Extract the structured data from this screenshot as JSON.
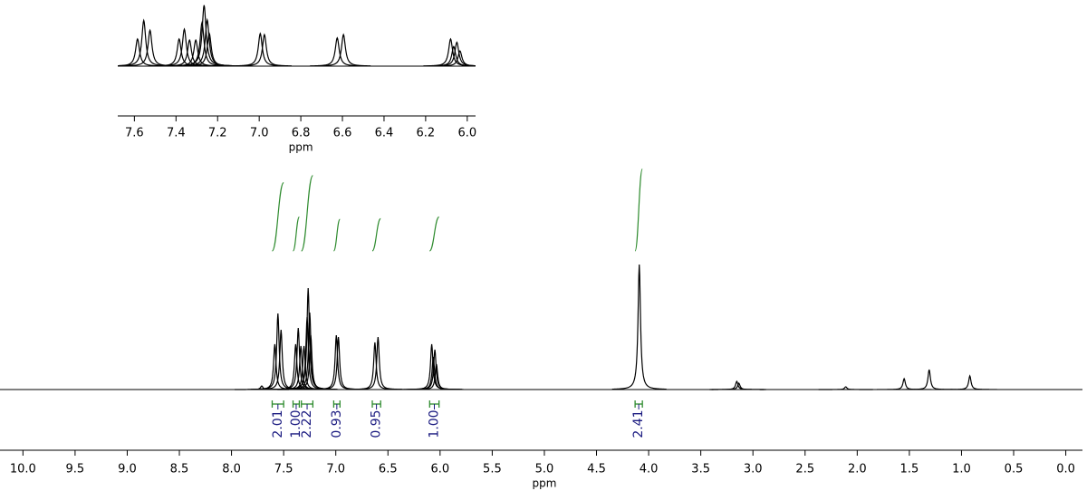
{
  "chart_data": {
    "type": "nmr",
    "xlabel": "ppm",
    "xlim": [
      10.22,
      -0.16
    ],
    "xticks": [
      {
        "value": 10,
        "label": "10.0"
      },
      9.5,
      {
        "value": 9,
        "label": "9.0"
      },
      8.5,
      {
        "value": 8,
        "label": "8.0"
      },
      7.5,
      {
        "value": 7,
        "label": "7.0"
      },
      6.5,
      {
        "value": 6,
        "label": "6.0"
      },
      5.5,
      {
        "value": 5,
        "label": "5.0"
      },
      4.5,
      {
        "value": 4,
        "label": "4.0"
      },
      3.5,
      {
        "value": 3,
        "label": "3.0"
      },
      2.5,
      {
        "value": 2,
        "label": "2.0"
      },
      1.5,
      {
        "value": 1,
        "label": "1.0"
      },
      0.5,
      {
        "value": 0,
        "label": "0.0"
      }
    ],
    "color": "#000000",
    "peaks": {
      "x": [
        7.71,
        7.585,
        7.555,
        7.525,
        7.385,
        7.36,
        7.335,
        7.305,
        7.275,
        7.265,
        7.25,
        7.24,
        6.995,
        6.975,
        6.625,
        6.595,
        6.08,
        6.065,
        6.05,
        6.035,
        4.09,
        3.155,
        3.135,
        2.11,
        1.55,
        1.31,
        0.92
      ],
      "values": [
        4,
        50,
        84,
        66,
        50,
        68,
        48,
        48,
        80,
        112,
        85,
        60,
        60,
        58,
        52,
        58,
        50,
        36,
        44,
        28,
        138,
        9,
        7,
        3,
        12,
        22,
        15
      ]
    },
    "integrals": {
      "color": "#2e8b2e",
      "label_color": "#1a1a80",
      "ranges": [
        [
          7.61,
          7.5
        ],
        [
          7.41,
          7.35
        ],
        [
          7.33,
          7.22
        ],
        [
          7.02,
          6.96
        ],
        [
          6.65,
          6.57
        ],
        [
          6.1,
          6.01
        ],
        [
          4.13,
          4.06
        ]
      ],
      "values": [
        2.01,
        1,
        2.22,
        0.93,
        0.95,
        1,
        2.41
      ],
      "value_labels": [
        "2.01",
        "1.00",
        "2.22",
        "0.93",
        "0.95",
        "1.00",
        "2.41"
      ]
    },
    "inset": {
      "xlabel": "ppm",
      "xlim": [
        7.68,
        5.96
      ],
      "xticks": [
        7.6,
        7.4,
        7.2,
        {
          "value": 7,
          "label": "7.0"
        },
        6.8,
        6.6,
        6.4,
        6.2,
        {
          "value": 6,
          "label": "6.0"
        }
      ]
    }
  }
}
